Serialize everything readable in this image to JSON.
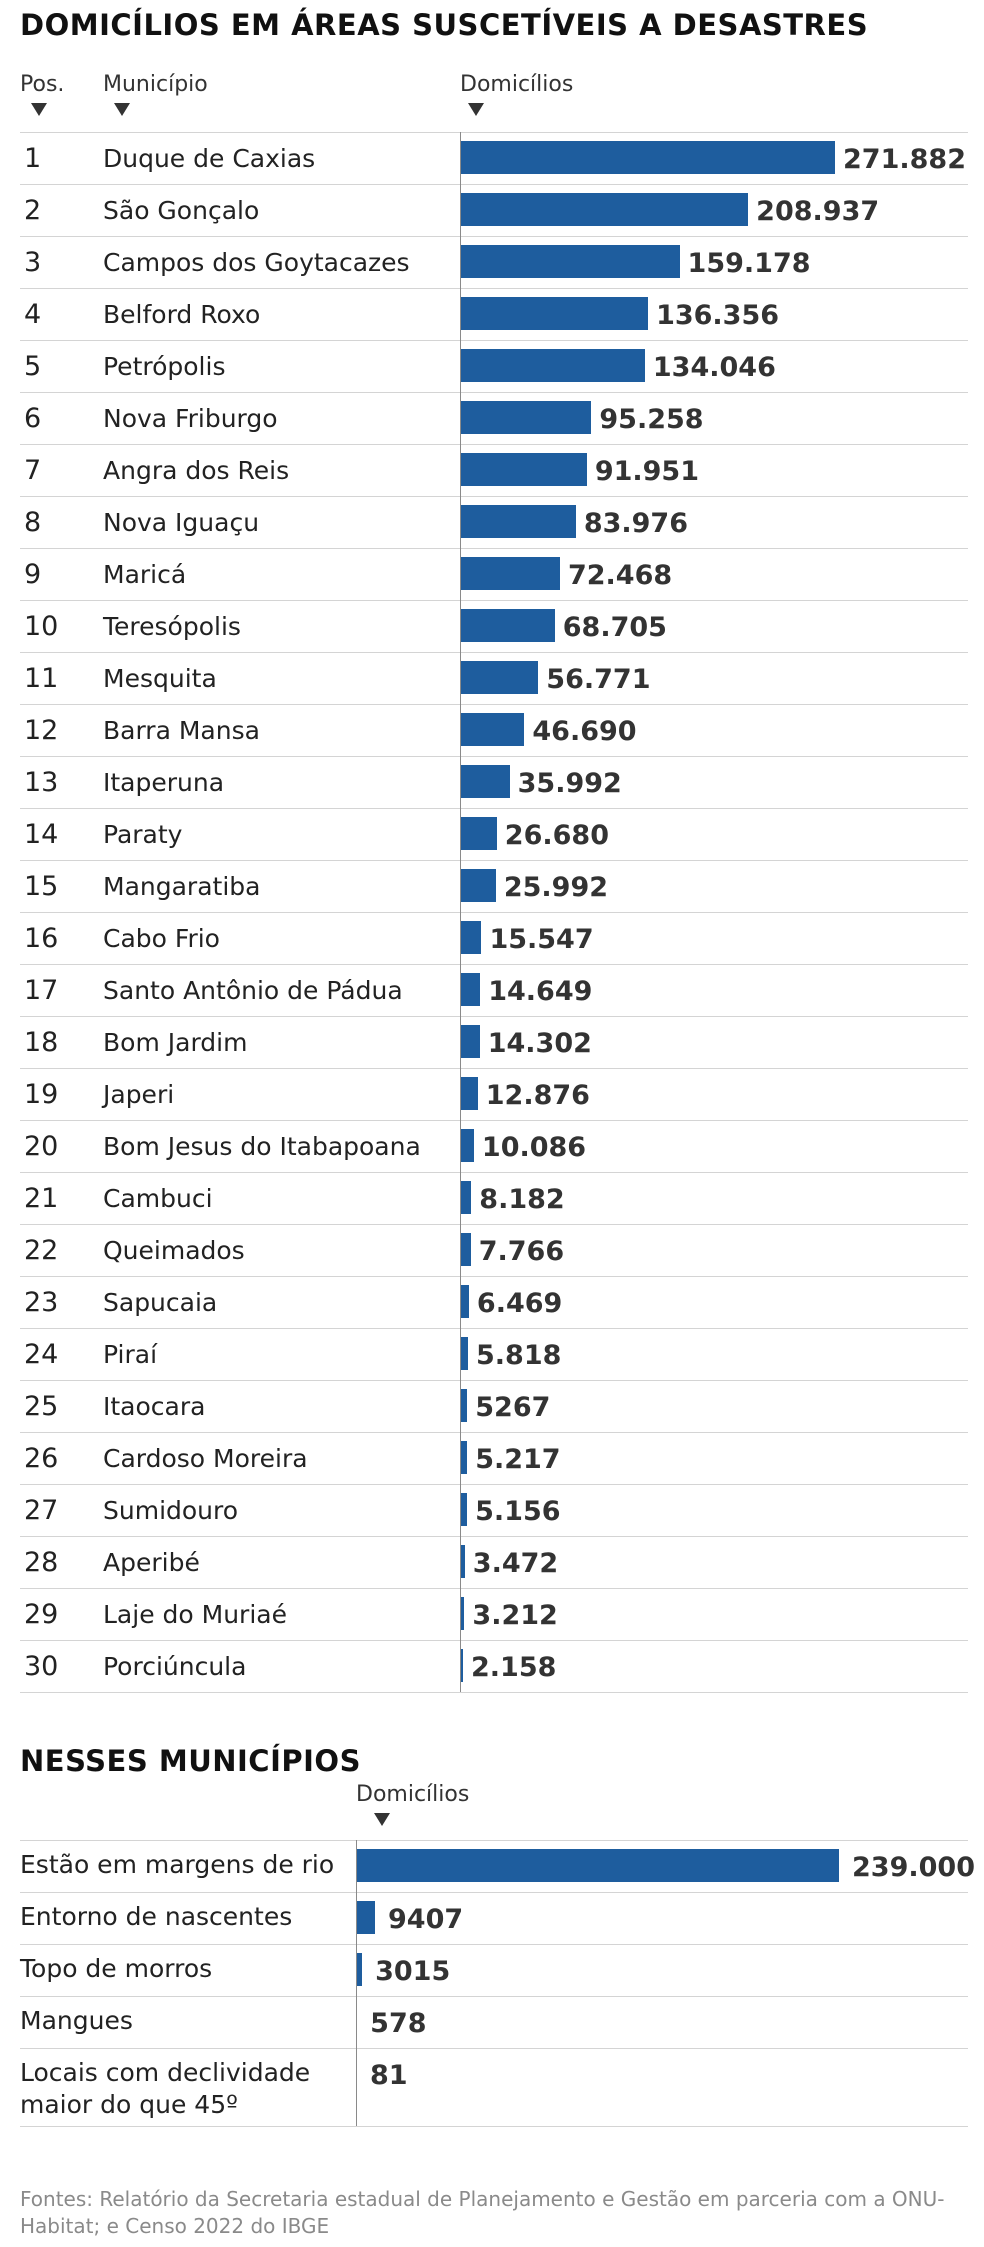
{
  "main": {
    "title": "DOMICÍLIOS EM ÁREAS SUSCETÍVEIS A DESASTRES",
    "col_pos": "Pos.",
    "col_municipio": "Município",
    "col_domicilios": "Domicílios"
  },
  "secondary": {
    "title": "NESSES MUNICÍPIOS",
    "col_domicilios": "Domicílios"
  },
  "source": "Fontes: Relatório da Secretaria estadual de Planejamento e Gestão em parceria com a ONU-Habitat; e Censo 2022 do IBGE",
  "colors": {
    "bar": "#1e5d9e"
  },
  "chart_data": [
    {
      "type": "bar",
      "orientation": "horizontal",
      "title": "DOMICÍLIOS EM ÁREAS SUSCETÍVEIS A DESASTRES",
      "xlabel": "Domicílios",
      "positions": [
        "1",
        "2",
        "3",
        "4",
        "5",
        "6",
        "7",
        "8",
        "9",
        "10",
        "11",
        "12",
        "13",
        "14",
        "15",
        "16",
        "17",
        "18",
        "19",
        "20",
        "21",
        "22",
        "23",
        "24",
        "25",
        "26",
        "27",
        "28",
        "29",
        "30"
      ],
      "categories": [
        "Duque de Caxias",
        "São Gonçalo",
        "Campos dos Goytacazes",
        "Belford Roxo",
        "Petrópolis",
        "Nova Friburgo",
        "Angra dos Reis",
        "Nova Iguaçu",
        "Maricá",
        "Teresópolis",
        "Mesquita",
        "Barra Mansa",
        "Itaperuna",
        "Paraty",
        "Mangaratiba",
        "Cabo Frio",
        "Santo Antônio de Pádua",
        "Bom Jardim",
        "Japeri",
        "Bom Jesus do Itabapoana",
        "Cambuci",
        "Queimados",
        "Sapucaia",
        "Piraí",
        "Itaocara",
        "Cardoso Moreira",
        "Sumidouro",
        "Aperibé",
        "Laje do Muriaé",
        "Porciúncula"
      ],
      "values": [
        271882,
        208937,
        159178,
        136356,
        134046,
        95258,
        91951,
        83976,
        72468,
        68705,
        56771,
        46690,
        35992,
        26680,
        25992,
        15547,
        14649,
        14302,
        12876,
        10086,
        8182,
        7766,
        6469,
        5818,
        5267,
        5217,
        5156,
        3472,
        3212,
        2158
      ],
      "value_labels": [
        "271.882",
        "208.937",
        "159.178",
        "136.356",
        "134.046",
        "95.258",
        "91.951",
        "83.976",
        "72.468",
        "68.705",
        "56.771",
        "46.690",
        "35.992",
        "26.680",
        "25.992",
        "15.547",
        "14.649",
        "14.302",
        "12.876",
        "10.086",
        "8.182",
        "7.766",
        "6.469",
        "5.818",
        "5267",
        "5.217",
        "5.156",
        "3.472",
        "3.212",
        "2.158"
      ],
      "xlim": [
        0,
        271882
      ]
    },
    {
      "type": "bar",
      "orientation": "horizontal",
      "title": "NESSES MUNICÍPIOS",
      "xlabel": "Domicílios",
      "categories": [
        "Estão em margens de rio",
        "Entorno de nascentes",
        "Topo de morros",
        "Mangues",
        "Locais com declividade maior do que 45º"
      ],
      "values": [
        239000,
        9407,
        3015,
        578,
        81
      ],
      "value_labels": [
        "239.000",
        "9407",
        "3015",
        "578",
        "81"
      ],
      "xlim": [
        0,
        239000
      ]
    }
  ]
}
